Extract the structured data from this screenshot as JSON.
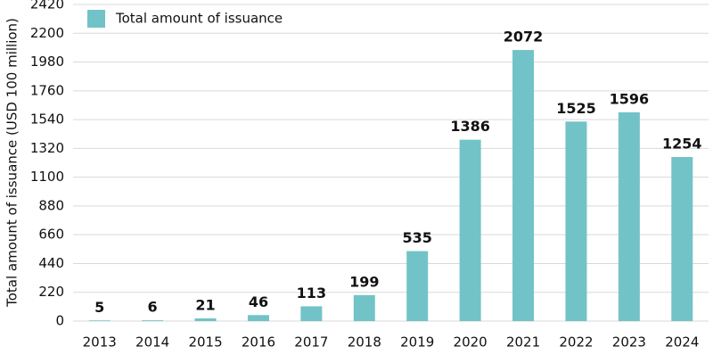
{
  "chart_data": {
    "type": "bar",
    "y_label": "Total amount of issuance (USD 100 million)",
    "categories": [
      "2013",
      "2014",
      "2015",
      "2016",
      "2017",
      "2018",
      "2019",
      "2020",
      "2021",
      "2022",
      "2023",
      "2024"
    ],
    "series": [
      {
        "name": "Total amount of issuance",
        "color": "#72c3c7",
        "values": [
          5,
          6,
          21,
          46,
          113,
          199,
          535,
          1386,
          2072,
          1525,
          1596,
          1254
        ]
      }
    ],
    "ylim": [
      0,
      2420
    ],
    "yticks": [
      0,
      220,
      440,
      660,
      880,
      1100,
      1320,
      1540,
      1760,
      1980,
      2200,
      2420
    ],
    "grid": true,
    "legend": "top-left"
  }
}
